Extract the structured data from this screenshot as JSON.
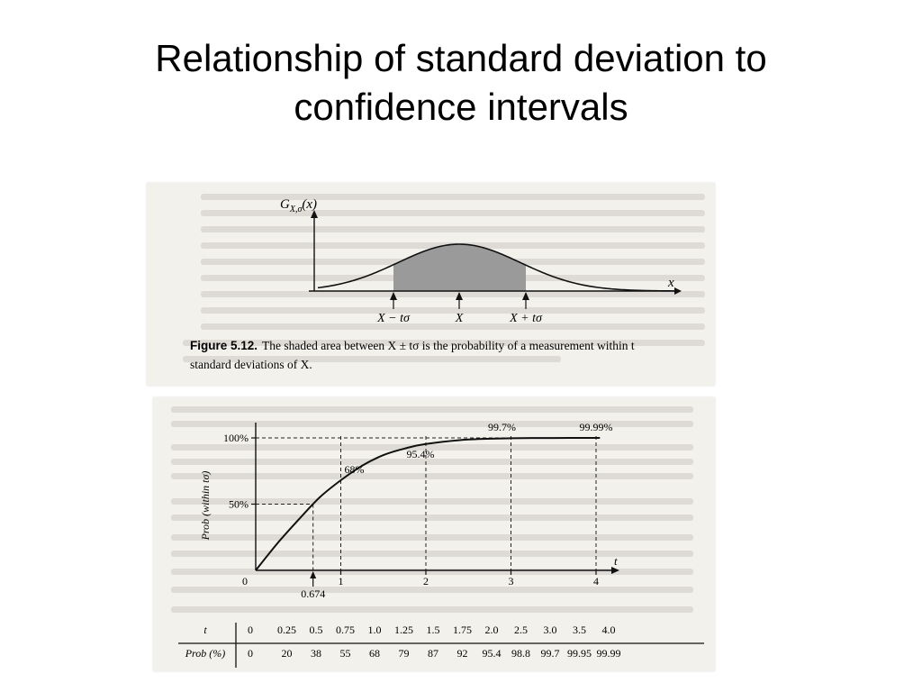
{
  "slide": {
    "title_line1": "Relationship of standard deviation to",
    "title_line2": "confidence intervals"
  },
  "figure_top": {
    "y_axis_label": "G",
    "y_axis_sub": "X,σ",
    "y_axis_arg": "(x)",
    "x_axis_label": "x",
    "tick_left": "X − tσ",
    "tick_mid": "X",
    "tick_right": "X + tσ",
    "caption_bold": "Figure 5.12.",
    "caption_line1": "The shaded area between X ± tσ is the probability of a measurement within t",
    "caption_line2": "standard deviations of X.",
    "shade_color": "#9a9a9a"
  },
  "chart_data": {
    "type": "line",
    "xlabel": "t",
    "ylabel": "Prob (within tσ)",
    "x_ticks": [
      "0",
      "1",
      "2",
      "3",
      "4"
    ],
    "y_ticks": [
      "50%",
      "100%"
    ],
    "xlim": [
      0,
      4
    ],
    "ylim": [
      0,
      100
    ],
    "annotations": [
      {
        "text": "0.674",
        "x": 0.674,
        "y": 50
      },
      {
        "text": "68%",
        "x": 1,
        "y": 68
      },
      {
        "text": "95.4%",
        "x": 2,
        "y": 95.4
      },
      {
        "text": "99.7%",
        "x": 3,
        "y": 99.7
      },
      {
        "text": "99.99%",
        "x": 4,
        "y": 99.99
      }
    ],
    "series": [
      {
        "x": [
          0,
          0.25,
          0.5,
          0.75,
          1.0,
          1.25,
          1.5,
          1.75,
          2.0,
          2.5,
          3.0,
          3.5,
          4.0
        ],
        "values": [
          0,
          20,
          38,
          55,
          68,
          79,
          87,
          92,
          95.4,
          98.8,
          99.7,
          99.95,
          99.99
        ]
      }
    ]
  },
  "table": {
    "t_label": "t",
    "prob_label": "Prob (%)",
    "t_values": [
      "0",
      "0.25",
      "0.5",
      "0.75",
      "1.0",
      "1.25",
      "1.5",
      "1.75",
      "2.0",
      "2.5",
      "3.0",
      "3.5",
      "4.0"
    ],
    "prob_values": [
      "0",
      "20",
      "38",
      "55",
      "68",
      "79",
      "87",
      "92",
      "95.4",
      "98.8",
      "99.7",
      "99.95",
      "99.99"
    ]
  }
}
